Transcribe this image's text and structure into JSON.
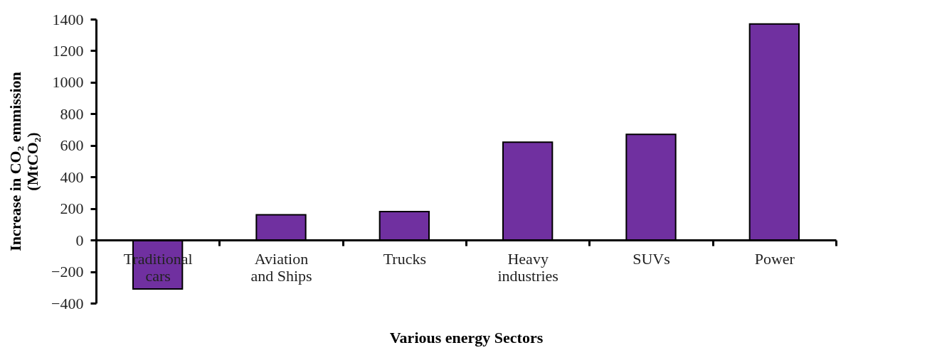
{
  "chart_data": {
    "type": "bar",
    "xlabel": "Various energy Sectors",
    "ylabel": "Increase in CO₂ emmission (MtCO₂)",
    "categories": [
      "Traditional cars",
      "Aviation and Ships",
      "Trucks",
      "Heavy industries",
      "SUVs",
      "Power"
    ],
    "values": [
      -310,
      160,
      180,
      620,
      670,
      1370
    ],
    "color": "#7030a0",
    "ylim": [
      -400,
      1400
    ],
    "yticks": [
      -400,
      -200,
      0,
      200,
      400,
      600,
      800,
      1000,
      1200,
      1400
    ],
    "grid": false
  }
}
